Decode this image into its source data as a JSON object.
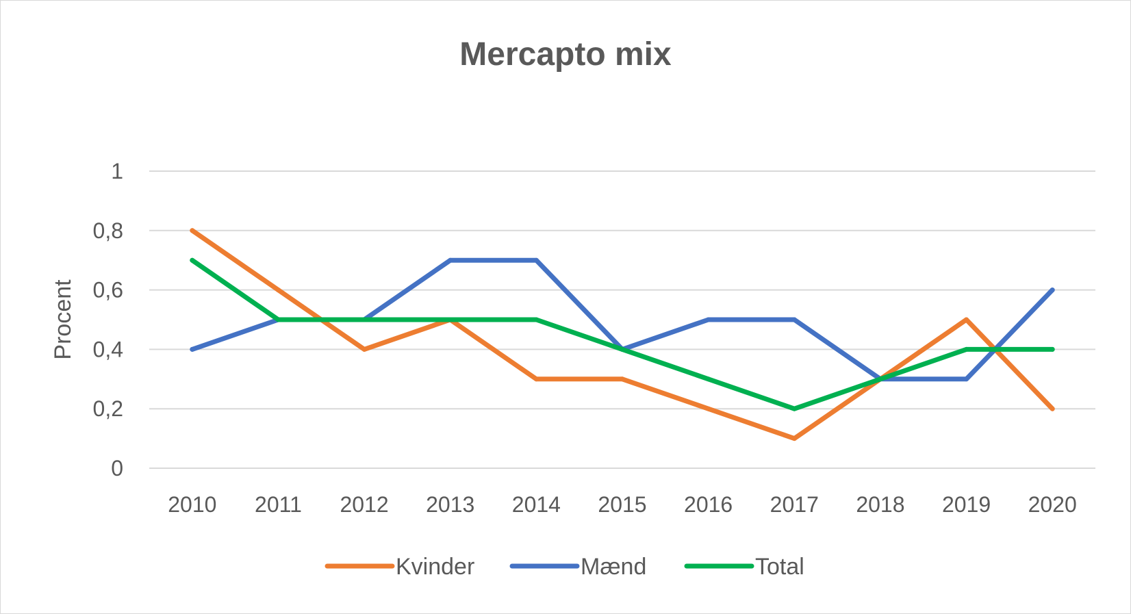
{
  "chart_data": {
    "type": "line",
    "title": "Mercapto mix",
    "xlabel": "",
    "ylabel": "Procent",
    "categories": [
      "2010",
      "2011",
      "2012",
      "2013",
      "2014",
      "2015",
      "2016",
      "2017",
      "2018",
      "2019",
      "2020"
    ],
    "ylim": [
      0,
      1
    ],
    "yticks": [
      "0",
      "0,2",
      "0,4",
      "0,6",
      "0,8",
      "1"
    ],
    "ytick_values": [
      0,
      0.2,
      0.4,
      0.6,
      0.8,
      1
    ],
    "grid": true,
    "legend": "bottom",
    "series": [
      {
        "name": "Kvinder",
        "color": "#ED7D31",
        "values": [
          0.8,
          0.6,
          0.4,
          0.5,
          0.3,
          0.3,
          0.2,
          0.1,
          0.3,
          0.5,
          0.2
        ]
      },
      {
        "name": "Mænd",
        "color": "#4472C4",
        "values": [
          0.4,
          0.5,
          0.5,
          0.7,
          0.7,
          0.4,
          0.5,
          0.5,
          0.3,
          0.3,
          0.6
        ]
      },
      {
        "name": "Total",
        "color": "#00B050",
        "values": [
          0.7,
          0.5,
          0.5,
          0.5,
          0.5,
          0.4,
          0.3,
          0.2,
          0.3,
          0.4,
          0.4
        ]
      }
    ]
  }
}
